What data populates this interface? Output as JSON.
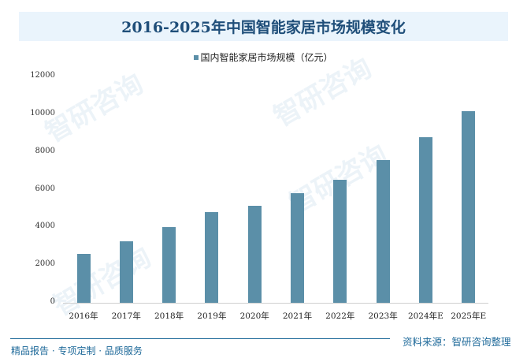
{
  "header": {
    "title": "2016-2025年中国智能家居市场规模变化"
  },
  "legend": {
    "label": "国内智能家居市场规模（亿元）",
    "color": "#5b8fa8"
  },
  "footer": {
    "left": "精品报告 · 专项定制 · 品质服务",
    "right": "资料来源：智研咨询整理"
  },
  "watermark": "智研咨询",
  "chart_data": {
    "type": "bar",
    "title": "2016-2025年中国智能家居市场规模变化",
    "xlabel": "",
    "ylabel": "",
    "categories": [
      "2016年",
      "2017年",
      "2018年",
      "2019年",
      "2020年",
      "2021年",
      "2022年",
      "2023年",
      "2024年E",
      "2025年E"
    ],
    "series": [
      {
        "name": "国内智能家居市场规模（亿元）",
        "color": "#5b8fa8",
        "values": [
          2600,
          3250,
          4000,
          4800,
          5150,
          5820,
          6530,
          7580,
          8790,
          10160
        ]
      }
    ],
    "ylim": [
      0,
      12000
    ],
    "yticks": [
      "0",
      "2000",
      "4000",
      "6000",
      "8000",
      "10000",
      "12000"
    ],
    "grid": false,
    "legend_position": "top"
  }
}
